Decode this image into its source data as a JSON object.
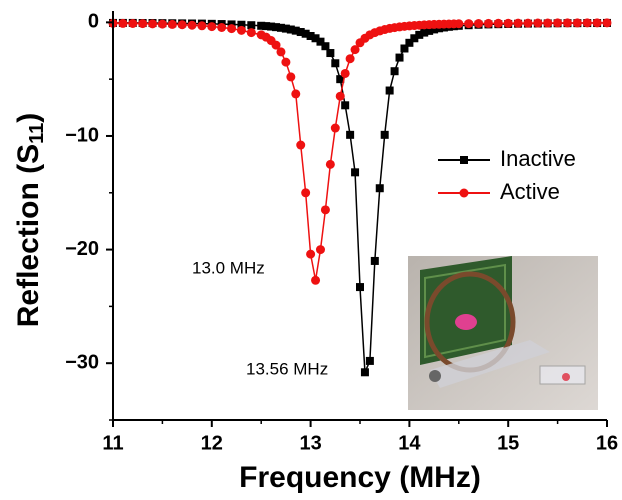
{
  "chart_data": {
    "type": "line",
    "xlabel": "Frequency (MHz)",
    "ylabel": {
      "text": "Reflection (S",
      "sub": "11",
      "end": ")"
    },
    "x": [
      11.0,
      11.1,
      11.2,
      11.3,
      11.4,
      11.5,
      11.6,
      11.7,
      11.8,
      11.9,
      12.0,
      12.1,
      12.2,
      12.3,
      12.4,
      12.5,
      12.55,
      12.6,
      12.65,
      12.7,
      12.75,
      12.8,
      12.85,
      12.9,
      12.95,
      13.0,
      13.05,
      13.1,
      13.15,
      13.2,
      13.25,
      13.3,
      13.35,
      13.4,
      13.45,
      13.5,
      13.55,
      13.6,
      13.65,
      13.7,
      13.75,
      13.8,
      13.85,
      13.9,
      13.95,
      14.0,
      14.05,
      14.1,
      14.15,
      14.2,
      14.25,
      14.3,
      14.35,
      14.4,
      14.45,
      14.5,
      14.6,
      14.7,
      14.8,
      14.9,
      15.0,
      15.1,
      15.2,
      15.3,
      15.4,
      15.5,
      15.6,
      15.7,
      15.8,
      15.9,
      16.0
    ],
    "series": [
      {
        "name": "Inactive",
        "color": "#000000",
        "marker": "square",
        "values": [
          -0.05,
          -0.05,
          -0.05,
          -0.06,
          -0.06,
          -0.07,
          -0.08,
          -0.09,
          -0.1,
          -0.11,
          -0.13,
          -0.15,
          -0.18,
          -0.21,
          -0.25,
          -0.3,
          -0.33,
          -0.37,
          -0.42,
          -0.48,
          -0.55,
          -0.63,
          -0.73,
          -0.85,
          -1.0,
          -1.2,
          -1.4,
          -1.7,
          -2.1,
          -2.7,
          -3.6,
          -5.0,
          -7.3,
          -9.9,
          -13.2,
          -23.3,
          -30.8,
          -29.8,
          -21.0,
          -14.6,
          -9.9,
          -6.0,
          -4.3,
          -3.1,
          -2.3,
          -1.8,
          -1.4,
          -1.1,
          -0.9,
          -0.75,
          -0.62,
          -0.52,
          -0.45,
          -0.39,
          -0.34,
          -0.3,
          -0.25,
          -0.21,
          -0.18,
          -0.16,
          -0.14,
          -0.12,
          -0.11,
          -0.1,
          -0.09,
          -0.08,
          -0.07,
          -0.07,
          -0.06,
          -0.06,
          -0.05
        ]
      },
      {
        "name": "Active",
        "color": "#ee1111",
        "marker": "circle",
        "values": [
          -0.08,
          -0.09,
          -0.1,
          -0.11,
          -0.13,
          -0.15,
          -0.18,
          -0.21,
          -0.25,
          -0.3,
          -0.37,
          -0.45,
          -0.55,
          -0.7,
          -0.9,
          -1.1,
          -1.3,
          -1.6,
          -2.0,
          -2.6,
          -3.5,
          -4.8,
          -6.3,
          -10.8,
          -15.0,
          -20.4,
          -22.7,
          -20.0,
          -16.5,
          -12.5,
          -9.3,
          -6.5,
          -4.5,
          -3.2,
          -2.4,
          -1.8,
          -1.4,
          -1.1,
          -0.9,
          -0.75,
          -0.63,
          -0.53,
          -0.46,
          -0.4,
          -0.35,
          -0.31,
          -0.28,
          -0.25,
          -0.22,
          -0.2,
          -0.18,
          -0.17,
          -0.15,
          -0.14,
          -0.13,
          -0.12,
          -0.11,
          -0.1,
          -0.09,
          -0.08,
          -0.08,
          -0.07,
          -0.07,
          -0.06,
          -0.06,
          -0.05,
          -0.05,
          -0.05,
          -0.04,
          -0.04,
          -0.04
        ]
      }
    ],
    "xlim": [
      11,
      16
    ],
    "ylim": [
      -35,
      1
    ],
    "xticks": [
      11,
      12,
      13,
      14,
      15,
      16
    ],
    "yticks": [
      0,
      {
        "value": -10,
        "label": "−10"
      },
      {
        "value": -20,
        "label": "−20"
      },
      {
        "value": -30,
        "label": "−30"
      }
    ],
    "annotations": [
      "13.0 MHz",
      "13.56 MHz"
    ]
  }
}
